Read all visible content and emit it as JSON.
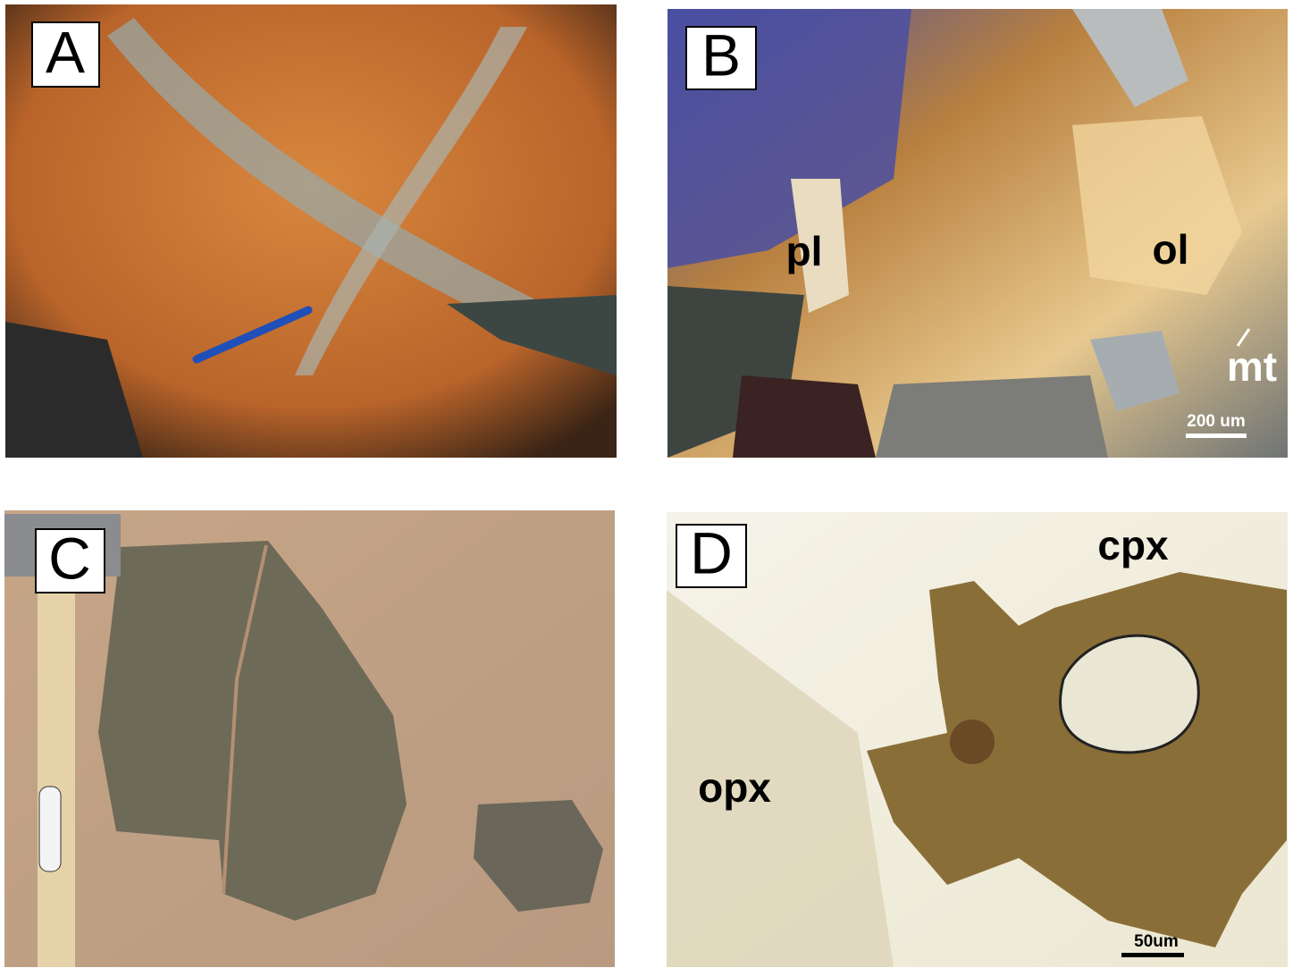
{
  "panels": [
    {
      "label": "A",
      "annotations": []
    },
    {
      "label": "B",
      "annotations": [
        "pl",
        "ol",
        "mt"
      ],
      "scale_bar": "200 um"
    },
    {
      "label": "C",
      "annotations": []
    },
    {
      "label": "D",
      "annotations": [
        "cpx",
        "opx"
      ],
      "scale_bar": "50um"
    }
  ]
}
